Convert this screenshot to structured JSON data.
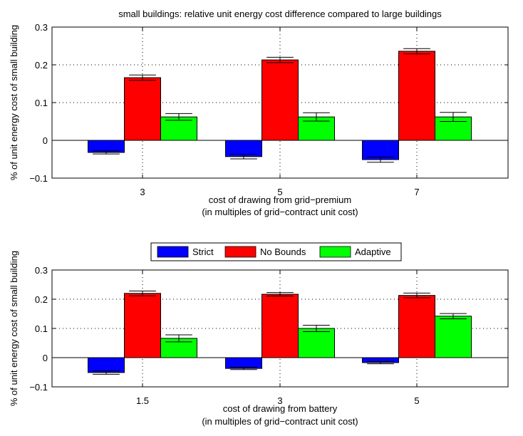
{
  "figure_title": "small buildings: relative unit energy cost difference compared to large buildings",
  "legend": {
    "placement": "between-plots-center",
    "entries": [
      {
        "label": "Strict",
        "color": "#0000ff"
      },
      {
        "label": "No Bounds",
        "color": "#ff0000"
      },
      {
        "label": "Adaptive",
        "color": "#00ff00"
      }
    ]
  },
  "chart_data": [
    {
      "type": "bar",
      "title": "small buildings: relative unit energy cost difference compared to large buildings",
      "xlabel": "cost of drawing from grid−premium",
      "xlabel2": "(in multiples of grid−contract unit cost)",
      "ylabel": "% of unit energy cost of small building",
      "categories": [
        "3",
        "5",
        "7"
      ],
      "ylim": [
        -0.1,
        0.3
      ],
      "yticks": [
        -0.1,
        0,
        0.1,
        0.2,
        0.3
      ],
      "ytick_labels": [
        "−0.1",
        "0",
        "0.1",
        "0.2",
        "0.3"
      ],
      "grid": true,
      "series": [
        {
          "name": "Strict",
          "color": "#0000ff",
          "values": [
            -0.032,
            -0.043,
            -0.051
          ],
          "errors": [
            0.004,
            0.006,
            0.007
          ]
        },
        {
          "name": "No Bounds",
          "color": "#ff0000",
          "values": [
            0.166,
            0.213,
            0.236
          ],
          "errors": [
            0.007,
            0.007,
            0.007
          ]
        },
        {
          "name": "Adaptive",
          "color": "#00ff00",
          "values": [
            0.062,
            0.062,
            0.062
          ],
          "errors": [
            0.009,
            0.011,
            0.012
          ]
        }
      ]
    },
    {
      "type": "bar",
      "title": "",
      "xlabel": "cost of drawing from battery",
      "xlabel2": "(in multiples of grid−contract unit cost)",
      "ylabel": "% of unit energy cost of small building",
      "categories": [
        "1.5",
        "3",
        "5"
      ],
      "ylim": [
        -0.1,
        0.3
      ],
      "yticks": [
        -0.1,
        0,
        0.1,
        0.2,
        0.3
      ],
      "ytick_labels": [
        "−0.1",
        "0",
        "0.1",
        "0.2",
        "0.3"
      ],
      "grid": true,
      "series": [
        {
          "name": "Strict",
          "color": "#0000ff",
          "values": [
            -0.051,
            -0.037,
            -0.017
          ],
          "errors": [
            0.006,
            0.004,
            0.004
          ]
        },
        {
          "name": "No Bounds",
          "color": "#ff0000",
          "values": [
            0.22,
            0.217,
            0.213
          ],
          "errors": [
            0.008,
            0.006,
            0.008
          ]
        },
        {
          "name": "Adaptive",
          "color": "#00ff00",
          "values": [
            0.066,
            0.1,
            0.142
          ],
          "errors": [
            0.012,
            0.011,
            0.009
          ]
        }
      ]
    }
  ]
}
